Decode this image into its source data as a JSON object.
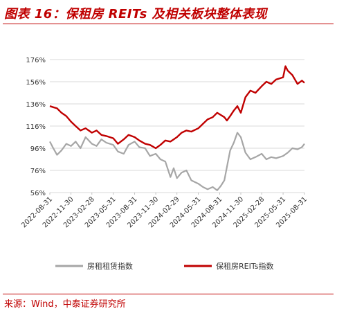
{
  "title": "图表 16：保租房 REITs 及相关板块整体表现",
  "source": "来源：Wind，中泰证券研究所",
  "chart_data": {
    "type": "line",
    "x_tick_labels": [
      "2022-08-31",
      "2022-11-30",
      "2023-02-28",
      "2023-05-31",
      "2023-08-31",
      "2023-11-30",
      "2024-02-29",
      "2024-05-31",
      "2024-08-31",
      "2024-11-30",
      "2025-02-28",
      "2025-05-31",
      "2025-08-31"
    ],
    "x_start": "2022-08-31",
    "x_end": "2025-08-31",
    "y_tick_labels": [
      "56%",
      "76%",
      "96%",
      "116%",
      "136%",
      "156%",
      "176%"
    ],
    "ylim": [
      56,
      176
    ],
    "y_unit": "%",
    "series": [
      {
        "name": "房租租赁指数",
        "color": "#a6a6a6",
        "x": [
          "2022-08-31",
          "2022-09-15",
          "2022-10-01",
          "2022-10-20",
          "2022-11-10",
          "2022-11-30",
          "2022-12-20",
          "2023-01-10",
          "2023-02-01",
          "2023-02-28",
          "2023-03-20",
          "2023-04-10",
          "2023-05-01",
          "2023-05-31",
          "2023-06-20",
          "2023-07-15",
          "2023-08-05",
          "2023-08-31",
          "2023-09-20",
          "2023-10-15",
          "2023-11-05",
          "2023-11-30",
          "2023-12-20",
          "2024-01-10",
          "2024-02-01",
          "2024-02-15",
          "2024-02-29",
          "2024-03-20",
          "2024-04-10",
          "2024-05-01",
          "2024-05-31",
          "2024-06-20",
          "2024-07-10",
          "2024-08-01",
          "2024-08-20",
          "2024-09-05",
          "2024-09-20",
          "2024-10-01",
          "2024-10-15",
          "2024-10-31",
          "2024-11-15",
          "2024-11-30",
          "2024-12-20",
          "2025-01-10",
          "2025-02-01",
          "2025-02-28",
          "2025-03-20",
          "2025-04-10",
          "2025-05-01",
          "2025-05-31",
          "2025-06-20",
          "2025-07-10",
          "2025-08-01",
          "2025-08-20",
          "2025-08-31"
        ],
        "values": [
          102,
          96,
          90,
          94,
          100,
          98,
          102,
          96,
          106,
          100,
          98,
          104,
          101,
          99,
          93,
          91,
          99,
          102,
          97,
          96,
          89,
          91,
          86,
          84,
          70,
          78,
          69,
          74,
          76,
          67,
          64,
          61,
          59,
          61,
          58,
          62,
          67,
          79,
          94,
          101,
          110,
          106,
          92,
          86,
          88,
          91,
          86,
          88,
          87,
          89,
          92,
          96,
          95,
          97,
          100
        ]
      },
      {
        "name": "保租房REITs指数",
        "color": "#c00000",
        "x": [
          "2022-08-31",
          "2022-09-15",
          "2022-10-01",
          "2022-10-20",
          "2022-11-10",
          "2022-11-30",
          "2022-12-20",
          "2023-01-10",
          "2023-02-01",
          "2023-02-28",
          "2023-03-20",
          "2023-04-10",
          "2023-05-01",
          "2023-05-31",
          "2023-06-20",
          "2023-07-15",
          "2023-08-05",
          "2023-08-31",
          "2023-09-20",
          "2023-10-15",
          "2023-11-05",
          "2023-11-30",
          "2023-12-20",
          "2024-01-10",
          "2024-02-01",
          "2024-02-15",
          "2024-02-29",
          "2024-03-20",
          "2024-04-10",
          "2024-05-01",
          "2024-05-31",
          "2024-06-20",
          "2024-07-10",
          "2024-08-01",
          "2024-08-20",
          "2024-09-05",
          "2024-09-20",
          "2024-10-01",
          "2024-10-15",
          "2024-10-31",
          "2024-11-15",
          "2024-11-30",
          "2024-12-20",
          "2025-01-10",
          "2025-02-01",
          "2025-02-28",
          "2025-03-20",
          "2025-04-10",
          "2025-05-01",
          "2025-05-31",
          "2025-06-10",
          "2025-06-20",
          "2025-07-10",
          "2025-08-01",
          "2025-08-20",
          "2025-08-31"
        ],
        "values": [
          134,
          133,
          132,
          128,
          125,
          120,
          116,
          112,
          114,
          110,
          112,
          108,
          107,
          105,
          100,
          104,
          108,
          106,
          103,
          100,
          99,
          96,
          99,
          103,
          102,
          104,
          106,
          110,
          112,
          111,
          114,
          118,
          122,
          124,
          128,
          126,
          124,
          121,
          125,
          130,
          134,
          128,
          142,
          148,
          146,
          152,
          156,
          154,
          158,
          160,
          170,
          166,
          162,
          154,
          157,
          155
        ]
      }
    ],
    "legend": [
      "房租租赁指数",
      "保租房REITs指数"
    ],
    "legend_position": "bottom"
  }
}
